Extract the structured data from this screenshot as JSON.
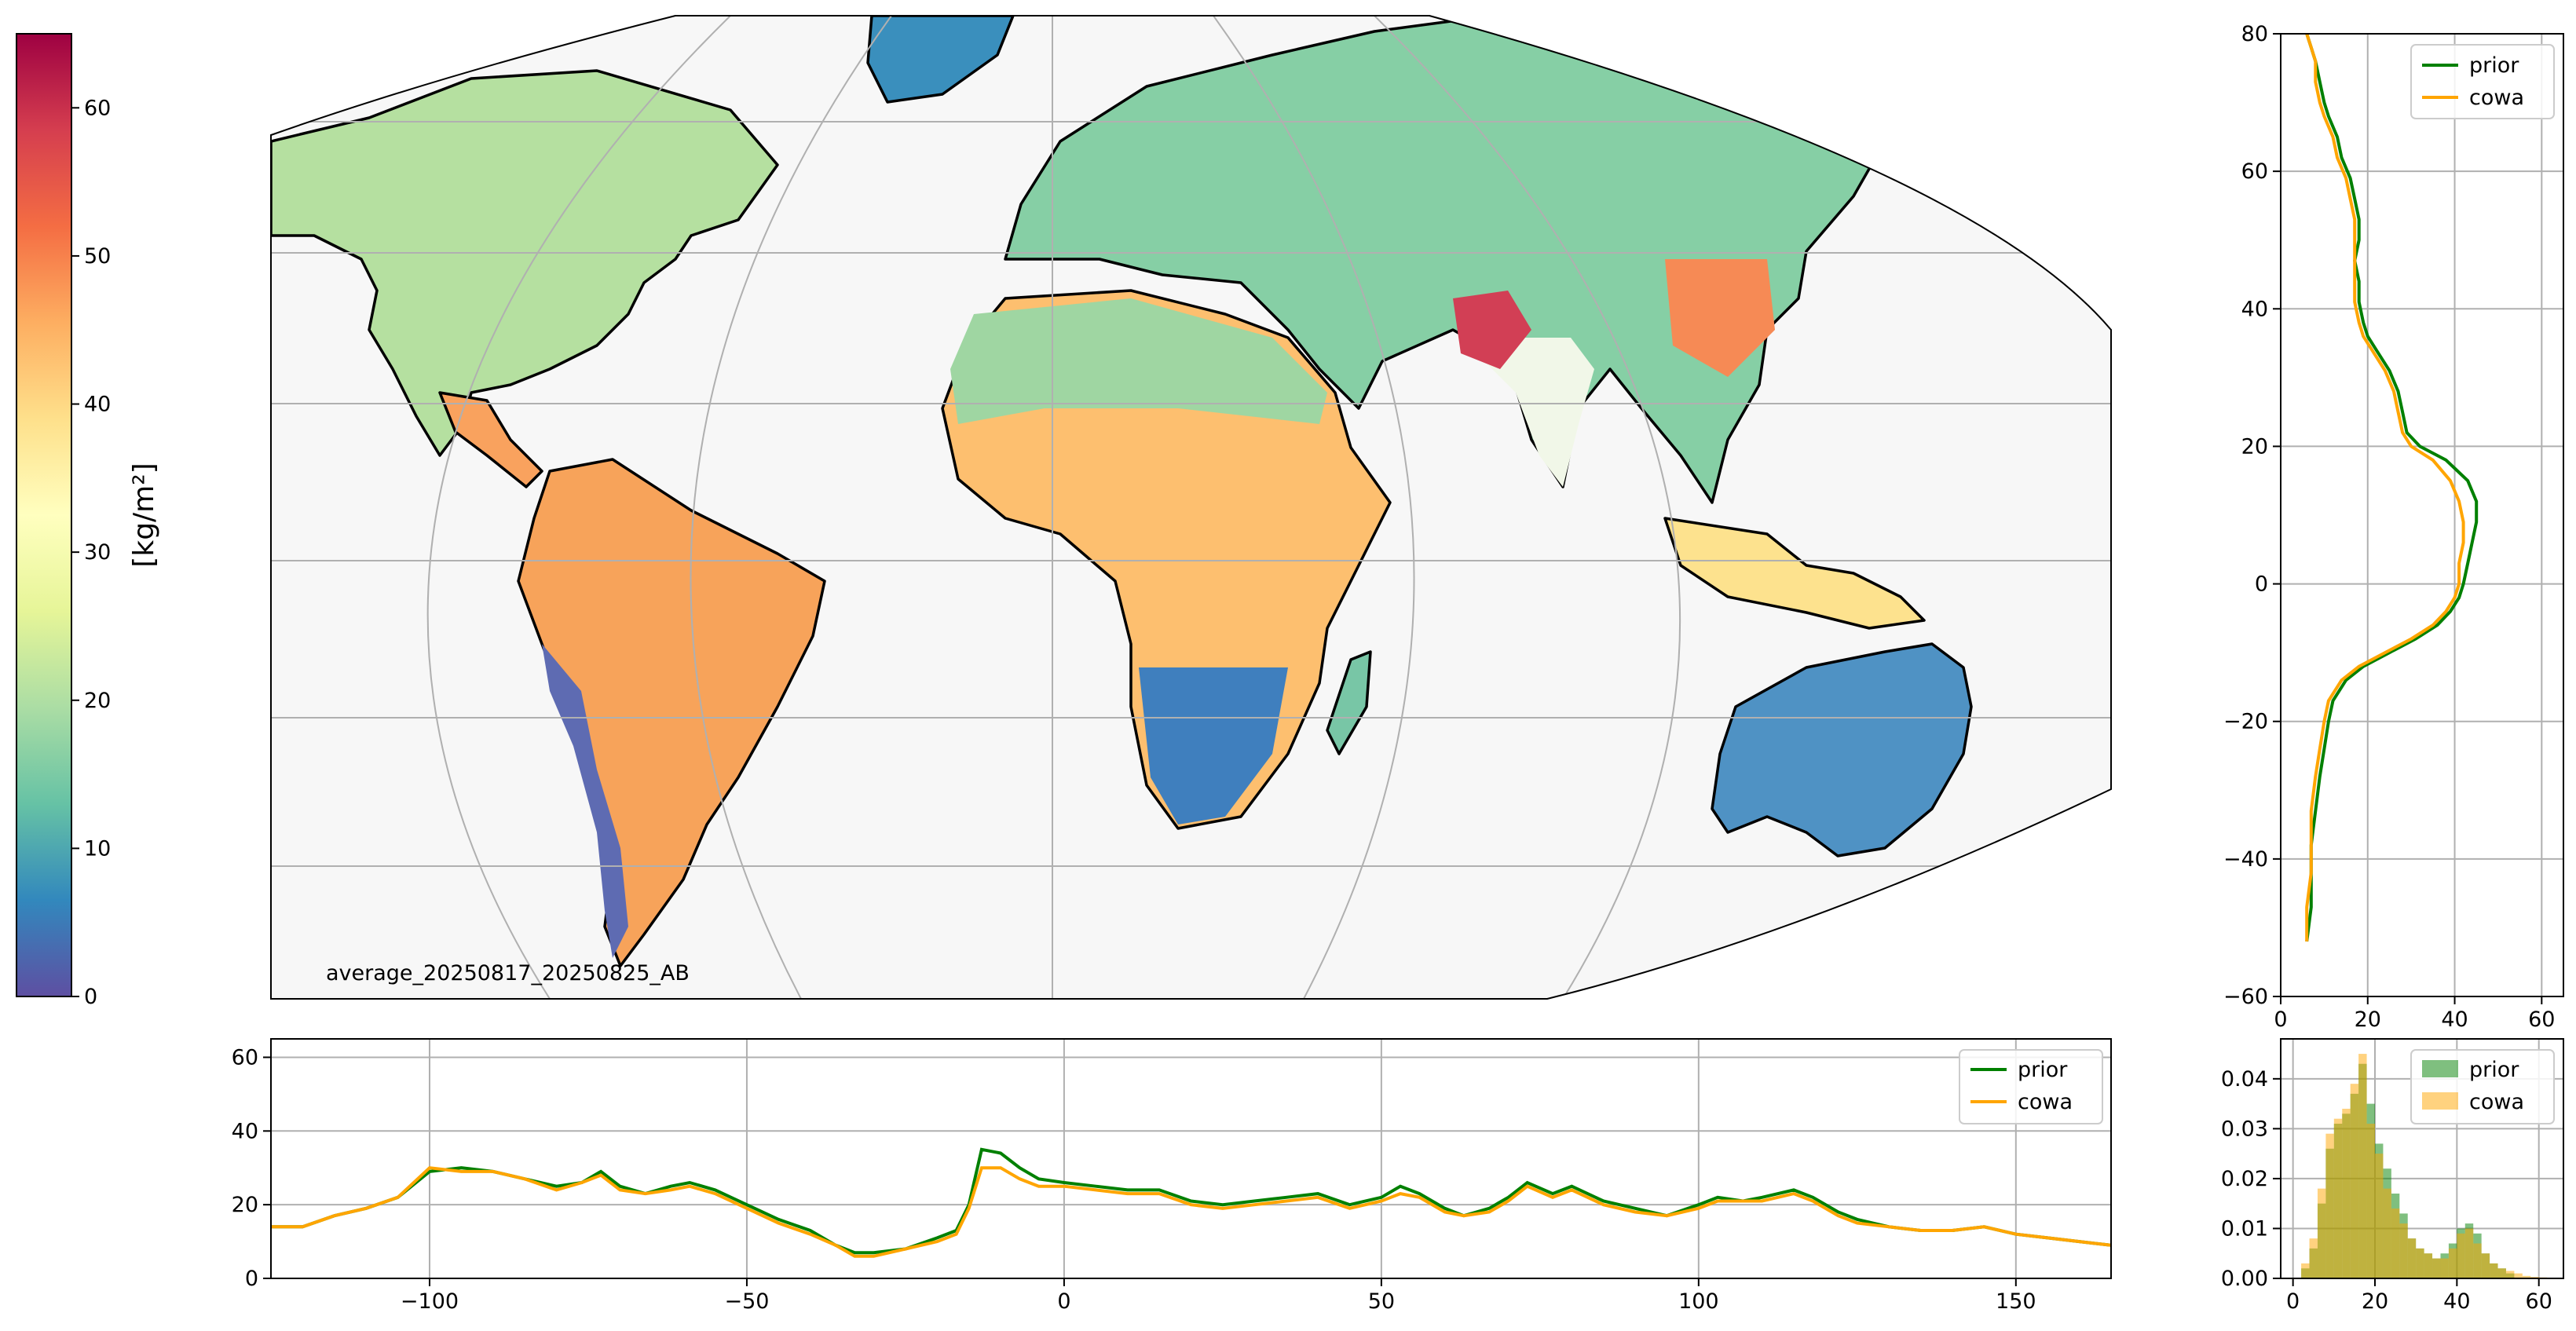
{
  "colorbar": {
    "label": "[kg/m²]",
    "range": [
      0,
      65
    ],
    "ticks": [
      "0",
      "10",
      "20",
      "30",
      "40",
      "50",
      "60"
    ],
    "colormap": "Spectral_r",
    "colors": [
      "#5e4fa2",
      "#3288bd",
      "#66c2a5",
      "#abdda4",
      "#e6f598",
      "#ffffbf",
      "#fee08b",
      "#fdae61",
      "#f46d43",
      "#d53e4f",
      "#9e0142"
    ]
  },
  "map": {
    "annotation": "average_20250817_20250825_AB",
    "projection": "robinson-like world map",
    "ocean_color": "#f7f7f7",
    "coast_color": "#000000"
  },
  "legend_items": [
    "prior",
    "cowa"
  ],
  "series_colors": {
    "prior": "#008000",
    "cowa": "#ffa500"
  },
  "chart_data": [
    {
      "type": "line",
      "panel": "zonal profile (right)",
      "xlim": [
        0,
        65
      ],
      "ylim": [
        -60,
        80
      ],
      "xticks": [
        "0",
        "20",
        "40",
        "60"
      ],
      "yticks": [
        "−60",
        "−40",
        "−20",
        "0",
        "20",
        "40",
        "60",
        "80"
      ],
      "grid": true,
      "legend_position": "upper-right",
      "series": [
        {
          "name": "prior",
          "points": [
            [
              6,
              -52
            ],
            [
              7,
              -47
            ],
            [
              7,
              -42
            ],
            [
              7,
              -38
            ],
            [
              8,
              -33
            ],
            [
              9,
              -28
            ],
            [
              10,
              -24
            ],
            [
              11,
              -20
            ],
            [
              12,
              -17
            ],
            [
              15,
              -14
            ],
            [
              19,
              -12
            ],
            [
              25,
              -10
            ],
            [
              31,
              -8
            ],
            [
              36,
              -6
            ],
            [
              39,
              -4
            ],
            [
              41,
              -2
            ],
            [
              42,
              0
            ],
            [
              43,
              3
            ],
            [
              44,
              6
            ],
            [
              45,
              9
            ],
            [
              45,
              12
            ],
            [
              43,
              15
            ],
            [
              38,
              18
            ],
            [
              32,
              20
            ],
            [
              29,
              22
            ],
            [
              28,
              25
            ],
            [
              27,
              28
            ],
            [
              25,
              31
            ],
            [
              22,
              34
            ],
            [
              20,
              36
            ],
            [
              19,
              38
            ],
            [
              18,
              41
            ],
            [
              18,
              44
            ],
            [
              17,
              47
            ],
            [
              18,
              50
            ],
            [
              18,
              53
            ],
            [
              17,
              56
            ],
            [
              16,
              59
            ],
            [
              14,
              62
            ],
            [
              13,
              65
            ],
            [
              11,
              68
            ],
            [
              10,
              70
            ],
            [
              9,
              73
            ],
            [
              8,
              76
            ],
            [
              7,
              78
            ],
            [
              6,
              80
            ]
          ]
        },
        {
          "name": "cowa",
          "points": [
            [
              6,
              -52
            ],
            [
              6,
              -47
            ],
            [
              7,
              -42
            ],
            [
              7,
              -38
            ],
            [
              7,
              -33
            ],
            [
              8,
              -28
            ],
            [
              9,
              -24
            ],
            [
              10,
              -20
            ],
            [
              11,
              -17
            ],
            [
              14,
              -14
            ],
            [
              18,
              -12
            ],
            [
              24,
              -10
            ],
            [
              30,
              -8
            ],
            [
              35,
              -6
            ],
            [
              38,
              -4
            ],
            [
              40,
              -2
            ],
            [
              41,
              0
            ],
            [
              41,
              3
            ],
            [
              42,
              6
            ],
            [
              42,
              9
            ],
            [
              41,
              12
            ],
            [
              39,
              15
            ],
            [
              35,
              18
            ],
            [
              30,
              20
            ],
            [
              28,
              22
            ],
            [
              27,
              25
            ],
            [
              26,
              28
            ],
            [
              24,
              31
            ],
            [
              21,
              34
            ],
            [
              19,
              36
            ],
            [
              18,
              38
            ],
            [
              17,
              41
            ],
            [
              17,
              44
            ],
            [
              17,
              47
            ],
            [
              17,
              50
            ],
            [
              17,
              53
            ],
            [
              16,
              56
            ],
            [
              15,
              59
            ],
            [
              13,
              62
            ],
            [
              12,
              65
            ],
            [
              10,
              68
            ],
            [
              9,
              70
            ],
            [
              8,
              73
            ],
            [
              8,
              76
            ],
            [
              7,
              78
            ],
            [
              6,
              80
            ]
          ]
        }
      ]
    },
    {
      "type": "line",
      "panel": "meridional profile (bottom)",
      "xlim": [
        -125,
        165
      ],
      "ylim": [
        0,
        65
      ],
      "xticks": [
        "−100",
        "−50",
        "0",
        "50",
        "100",
        "150"
      ],
      "yticks": [
        "0",
        "20",
        "40",
        "60"
      ],
      "grid": true,
      "legend_position": "upper-right",
      "series": [
        {
          "name": "prior",
          "points": [
            [
              -125,
              14
            ],
            [
              -120,
              14
            ],
            [
              -115,
              17
            ],
            [
              -110,
              19
            ],
            [
              -105,
              22
            ],
            [
              -100,
              29
            ],
            [
              -95,
              30
            ],
            [
              -90,
              29
            ],
            [
              -85,
              27
            ],
            [
              -80,
              25
            ],
            [
              -76,
              26
            ],
            [
              -73,
              29
            ],
            [
              -70,
              25
            ],
            [
              -66,
              23
            ],
            [
              -62,
              25
            ],
            [
              -59,
              26
            ],
            [
              -55,
              24
            ],
            [
              -50,
              20
            ],
            [
              -45,
              16
            ],
            [
              -40,
              13
            ],
            [
              -36,
              9
            ],
            [
              -33,
              7
            ],
            [
              -30,
              7
            ],
            [
              -25,
              8
            ],
            [
              -20,
              11
            ],
            [
              -17,
              13
            ],
            [
              -15,
              20
            ],
            [
              -13,
              35
            ],
            [
              -10,
              34
            ],
            [
              -7,
              30
            ],
            [
              -4,
              27
            ],
            [
              0,
              26
            ],
            [
              5,
              25
            ],
            [
              10,
              24
            ],
            [
              15,
              24
            ],
            [
              20,
              21
            ],
            [
              25,
              20
            ],
            [
              30,
              21
            ],
            [
              35,
              22
            ],
            [
              40,
              23
            ],
            [
              45,
              20
            ],
            [
              50,
              22
            ],
            [
              53,
              25
            ],
            [
              56,
              23
            ],
            [
              60,
              19
            ],
            [
              63,
              17
            ],
            [
              67,
              19
            ],
            [
              70,
              22
            ],
            [
              73,
              26
            ],
            [
              77,
              23
            ],
            [
              80,
              25
            ],
            [
              85,
              21
            ],
            [
              90,
              19
            ],
            [
              95,
              17
            ],
            [
              100,
              20
            ],
            [
              103,
              22
            ],
            [
              107,
              21
            ],
            [
              110,
              22
            ],
            [
              115,
              24
            ],
            [
              118,
              22
            ],
            [
              122,
              18
            ],
            [
              125,
              16
            ],
            [
              130,
              14
            ],
            [
              135,
              13
            ],
            [
              140,
              13
            ],
            [
              145,
              14
            ],
            [
              150,
              12
            ],
            [
              155,
              11
            ],
            [
              160,
              10
            ],
            [
              165,
              9
            ]
          ]
        },
        {
          "name": "cowa",
          "points": [
            [
              -125,
              14
            ],
            [
              -120,
              14
            ],
            [
              -115,
              17
            ],
            [
              -110,
              19
            ],
            [
              -105,
              22
            ],
            [
              -100,
              30
            ],
            [
              -95,
              29
            ],
            [
              -90,
              29
            ],
            [
              -85,
              27
            ],
            [
              -80,
              24
            ],
            [
              -76,
              26
            ],
            [
              -73,
              28
            ],
            [
              -70,
              24
            ],
            [
              -66,
              23
            ],
            [
              -62,
              24
            ],
            [
              -59,
              25
            ],
            [
              -55,
              23
            ],
            [
              -50,
              19
            ],
            [
              -45,
              15
            ],
            [
              -40,
              12
            ],
            [
              -36,
              9
            ],
            [
              -33,
              6
            ],
            [
              -30,
              6
            ],
            [
              -25,
              8
            ],
            [
              -20,
              10
            ],
            [
              -17,
              12
            ],
            [
              -15,
              19
            ],
            [
              -13,
              30
            ],
            [
              -10,
              30
            ],
            [
              -7,
              27
            ],
            [
              -4,
              25
            ],
            [
              0,
              25
            ],
            [
              5,
              24
            ],
            [
              10,
              23
            ],
            [
              15,
              23
            ],
            [
              20,
              20
            ],
            [
              25,
              19
            ],
            [
              30,
              20
            ],
            [
              35,
              21
            ],
            [
              40,
              22
            ],
            [
              45,
              19
            ],
            [
              50,
              21
            ],
            [
              53,
              23
            ],
            [
              56,
              22
            ],
            [
              60,
              18
            ],
            [
              63,
              17
            ],
            [
              67,
              18
            ],
            [
              70,
              21
            ],
            [
              73,
              25
            ],
            [
              77,
              22
            ],
            [
              80,
              24
            ],
            [
              85,
              20
            ],
            [
              90,
              18
            ],
            [
              95,
              17
            ],
            [
              100,
              19
            ],
            [
              103,
              21
            ],
            [
              107,
              21
            ],
            [
              110,
              21
            ],
            [
              115,
              23
            ],
            [
              118,
              21
            ],
            [
              122,
              17
            ],
            [
              125,
              15
            ],
            [
              130,
              14
            ],
            [
              135,
              13
            ],
            [
              140,
              13
            ],
            [
              145,
              14
            ],
            [
              150,
              12
            ],
            [
              155,
              11
            ],
            [
              160,
              10
            ],
            [
              165,
              9
            ]
          ]
        }
      ]
    },
    {
      "type": "histogram",
      "panel": "value distribution (bottom-right)",
      "xlim": [
        -3,
        66
      ],
      "ylim": [
        0,
        0.048
      ],
      "xticks": [
        "0",
        "20",
        "40",
        "60"
      ],
      "yticks": [
        "0.00",
        "0.01",
        "0.02",
        "0.03",
        "0.04"
      ],
      "grid": true,
      "legend_position": "upper-right",
      "bin_width": 2,
      "bin_starts": [
        0,
        2,
        4,
        6,
        8,
        10,
        12,
        14,
        16,
        18,
        20,
        22,
        24,
        26,
        28,
        30,
        32,
        34,
        36,
        38,
        40,
        42,
        44,
        46,
        48,
        50,
        52,
        54,
        56,
        58,
        60,
        62,
        64
      ],
      "series": [
        {
          "name": "prior",
          "alpha": 0.5,
          "values": [
            0.0,
            0.002,
            0.006,
            0.015,
            0.026,
            0.031,
            0.033,
            0.037,
            0.043,
            0.035,
            0.027,
            0.022,
            0.017,
            0.013,
            0.008,
            0.006,
            0.005,
            0.004,
            0.005,
            0.007,
            0.01,
            0.011,
            0.009,
            0.005,
            0.003,
            0.002,
            0.001,
            0.0,
            0.0,
            0.0,
            0.0,
            0.0,
            0.0
          ]
        },
        {
          "name": "cowa",
          "alpha": 0.5,
          "values": [
            0.0,
            0.003,
            0.008,
            0.018,
            0.029,
            0.032,
            0.034,
            0.039,
            0.045,
            0.031,
            0.025,
            0.018,
            0.014,
            0.011,
            0.008,
            0.006,
            0.005,
            0.004,
            0.004,
            0.006,
            0.009,
            0.01,
            0.007,
            0.005,
            0.003,
            0.002,
            0.0015,
            0.001,
            0.0005,
            0.0003,
            0.0002,
            0.0,
            0.0
          ]
        }
      ]
    }
  ]
}
